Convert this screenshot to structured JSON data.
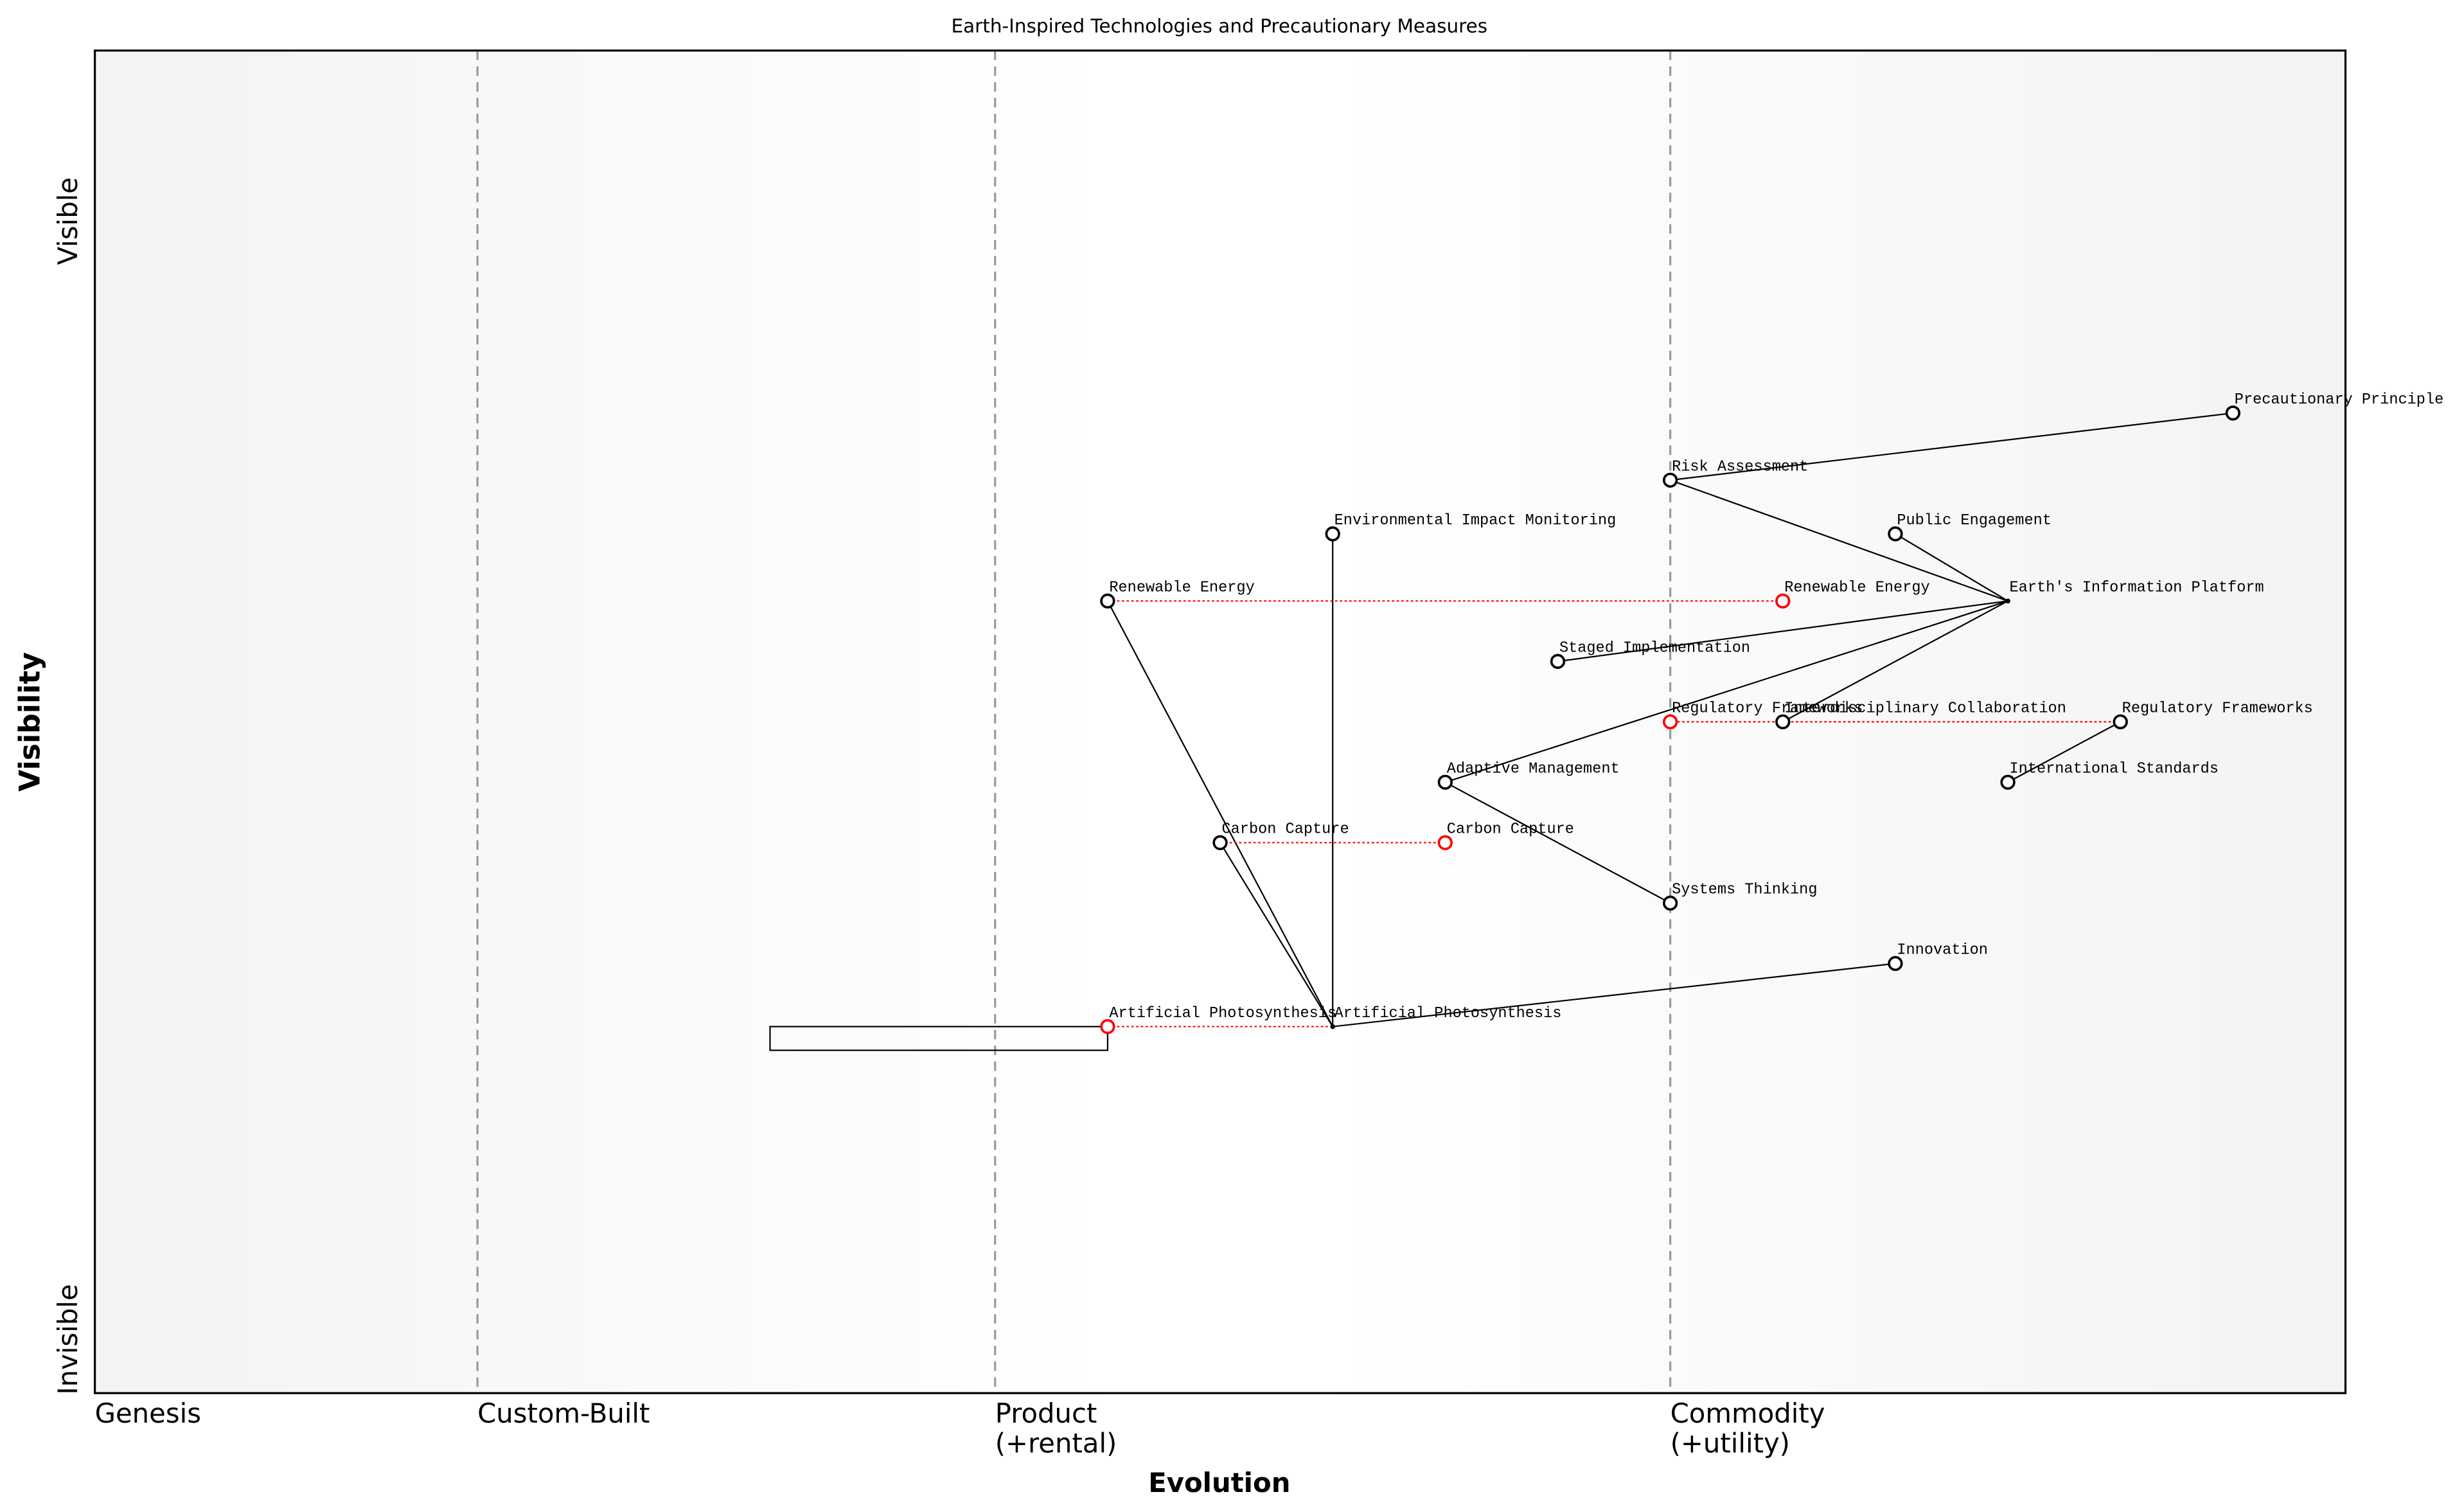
{
  "chart_data": {
    "type": "wardley",
    "title": "Earth-Inspired Technologies and Precautionary Measures",
    "x_label": "Evolution",
    "y_label": "Visibility",
    "y_top_label": "Visible",
    "y_bottom_label": "Invisible",
    "xlim": [
      0,
      1
    ],
    "ylim": [
      0,
      1
    ],
    "stages": [
      {
        "label": [
          "Genesis"
        ],
        "x": 0
      },
      {
        "label": [
          "Custom-Built"
        ],
        "x": 0.17
      },
      {
        "label": [
          "Product",
          "(+rental)"
        ],
        "x": 0.4
      },
      {
        "label": [
          "Commodity",
          "(+utility)"
        ],
        "x": 0.7
      }
    ],
    "components": [
      {
        "name": "Precautionary Principle",
        "x": 0.95,
        "y": 0.73
      },
      {
        "name": "Risk Assessment",
        "x": 0.7,
        "y": 0.68
      },
      {
        "name": "Public Engagement",
        "x": 0.8,
        "y": 0.64
      },
      {
        "name": "Environmental Impact Monitoring",
        "x": 0.55,
        "y": 0.64
      },
      {
        "name": "Renewable Energy",
        "x": 0.45,
        "y": 0.59
      },
      {
        "name": "Earth's Information Platform",
        "x": 0.85,
        "y": 0.59
      },
      {
        "name": "Staged Implementation",
        "x": 0.65,
        "y": 0.545
      },
      {
        "name": "Interdisciplinary Collaboration",
        "x": 0.75,
        "y": 0.5
      },
      {
        "name": "Regulatory Frameworks",
        "x": 0.9,
        "y": 0.5
      },
      {
        "name": "International Standards",
        "x": 0.85,
        "y": 0.455
      },
      {
        "name": "Adaptive Management",
        "x": 0.6,
        "y": 0.455
      },
      {
        "name": "Carbon Capture",
        "x": 0.5,
        "y": 0.41
      },
      {
        "name": "Systems Thinking",
        "x": 0.7,
        "y": 0.365
      },
      {
        "name": "Innovation",
        "x": 0.8,
        "y": 0.32
      },
      {
        "name": "Artificial Photosynthesis",
        "x": 0.55,
        "y": 0.273
      }
    ],
    "links": [
      [
        "Risk Assessment",
        "Precautionary Principle"
      ],
      [
        "Risk Assessment",
        "Earth's Information Platform"
      ],
      [
        "Public Engagement",
        "Earth's Information Platform"
      ],
      [
        "Staged Implementation",
        "Earth's Information Platform"
      ],
      [
        "Interdisciplinary Collaboration",
        "Earth's Information Platform"
      ],
      [
        "Adaptive Management",
        "Earth's Information Platform"
      ],
      [
        "Adaptive Management",
        "Systems Thinking"
      ],
      [
        "International Standards",
        "Regulatory Frameworks"
      ],
      [
        "Renewable Energy",
        "Artificial Photosynthesis"
      ],
      [
        "Carbon Capture",
        "Artificial Photosynthesis"
      ],
      [
        "Environmental Impact Monitoring",
        "Artificial Photosynthesis"
      ],
      [
        "Innovation",
        "Artificial Photosynthesis"
      ]
    ],
    "evolve": [
      {
        "component": "Renewable Energy",
        "x": 0.75
      },
      {
        "component": "Regulatory Frameworks",
        "x": 0.7
      },
      {
        "component": "Carbon Capture",
        "x": 0.6
      },
      {
        "component": "Artificial Photosynthesis",
        "x": 0.45
      }
    ],
    "pipelines": [
      {
        "component": "Artificial Photosynthesis",
        "x_start": 0.3,
        "x_end": 0.45
      }
    ],
    "node_color": "#000000",
    "evolve_color": "#ff0000",
    "stage_line_color": "#999999"
  }
}
